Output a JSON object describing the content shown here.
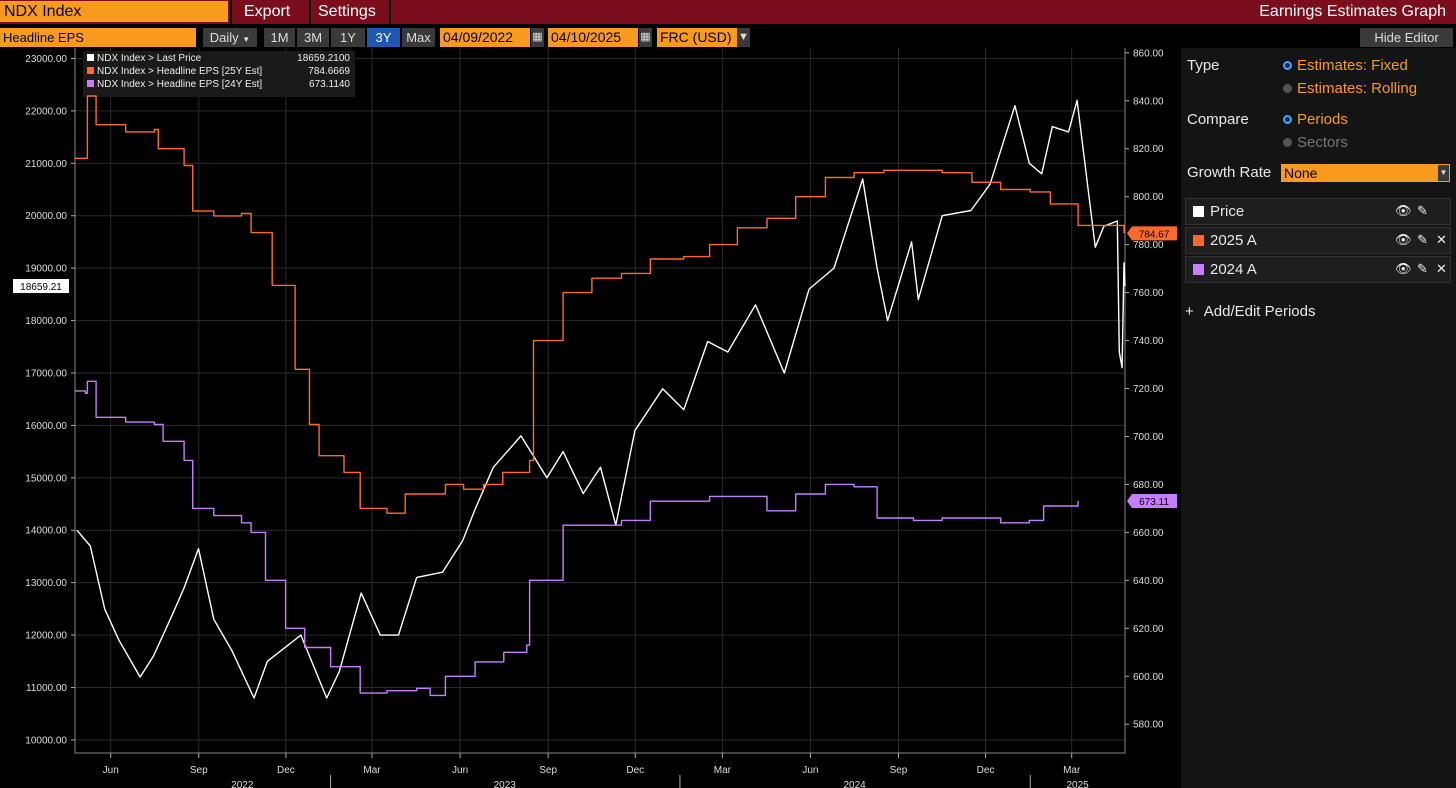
{
  "header": {
    "ticker": "NDX Index",
    "menu": [
      "Export",
      "Settings"
    ],
    "title": "Earnings Estimates Graph"
  },
  "toolbar": {
    "field": "Headline EPS",
    "frequency": "Daily",
    "ranges": [
      "1M",
      "3M",
      "1Y",
      "3Y",
      "Max"
    ],
    "active_range": "3Y",
    "start_date": "04/09/2022",
    "end_date": "04/10/2025",
    "currency": "FRC (USD)",
    "hide_editor": "Hide Editor"
  },
  "panel": {
    "type_label": "Type",
    "type_options": [
      "Estimates: Fixed",
      "Estimates: Rolling"
    ],
    "compare_label": "Compare",
    "compare_options": [
      "Periods",
      "Sectors"
    ],
    "growth_label": "Growth Rate",
    "growth_value": "None",
    "series_rows": [
      {
        "name": "Price",
        "color": "#ffffff"
      },
      {
        "name": "2025 A",
        "color": "#ff6a2b"
      },
      {
        "name": "2024 A",
        "color": "#c77dff"
      }
    ],
    "add_periods": "Add/Edit Periods"
  },
  "chart_data": {
    "type": "line",
    "legend": [
      {
        "label": "NDX Index > Last Price",
        "value": "18659.2100",
        "color": "#ffffff"
      },
      {
        "label": "NDX Index > Headline EPS [25Y Est]",
        "value": "784.6669",
        "color": "#ff6a2b"
      },
      {
        "label": "NDX Index > Headline EPS [24Y Est]",
        "value": "673.1140",
        "color": "#c77dff"
      }
    ],
    "left_axis": {
      "ticks": [
        "23000.00",
        "22000.00",
        "21000.00",
        "20000.00",
        "19000.00",
        "18000.00",
        "17000.00",
        "16000.00",
        "15000.00",
        "14000.00",
        "13000.00",
        "12000.00",
        "11000.00",
        "10000.00"
      ],
      "range": [
        9750,
        23200
      ]
    },
    "right_axis": {
      "ticks": [
        "860.00",
        "840.00",
        "820.00",
        "800.00",
        "780.00",
        "760.00",
        "740.00",
        "720.00",
        "700.00",
        "680.00",
        "660.00",
        "640.00",
        "620.00",
        "600.00",
        "580.00"
      ],
      "range": [
        568,
        862
      ]
    },
    "x_axis": {
      "months": [
        "Jun",
        "Sep",
        "Dec",
        "Mar",
        "Jun",
        "Sep",
        "Dec",
        "Mar",
        "Jun",
        "Sep",
        "Dec",
        "Mar"
      ],
      "years": [
        "2022",
        "2023",
        "2024",
        "2025"
      ],
      "range": [
        "2022-04-09",
        "2025-04-10"
      ]
    },
    "last_labels": {
      "price": "18659.21",
      "eps25": "784.67",
      "eps24": "673.11"
    },
    "series": [
      {
        "name": "NDX Index > Last Price",
        "axis": "left",
        "color": "#ffffff",
        "points": [
          [
            "2022-04-11",
            14000
          ],
          [
            "2022-04-25",
            13700
          ],
          [
            "2022-05-10",
            12500
          ],
          [
            "2022-05-25",
            11900
          ],
          [
            "2022-06-16",
            11200
          ],
          [
            "2022-06-30",
            11600
          ],
          [
            "2022-07-20",
            12400
          ],
          [
            "2022-08-01",
            12900
          ],
          [
            "2022-08-16",
            13650
          ],
          [
            "2022-09-01",
            12300
          ],
          [
            "2022-09-20",
            11700
          ],
          [
            "2022-10-13",
            10800
          ],
          [
            "2022-10-27",
            11500
          ],
          [
            "2022-11-10",
            11700
          ],
          [
            "2022-12-01",
            12000
          ],
          [
            "2022-12-28",
            10800
          ],
          [
            "2023-01-10",
            11300
          ],
          [
            "2023-02-02",
            12800
          ],
          [
            "2023-02-22",
            12000
          ],
          [
            "2023-03-13",
            12000
          ],
          [
            "2023-04-01",
            13100
          ],
          [
            "2023-04-28",
            13200
          ],
          [
            "2023-05-19",
            13800
          ],
          [
            "2023-06-01",
            14400
          ],
          [
            "2023-06-20",
            15200
          ],
          [
            "2023-07-19",
            15800
          ],
          [
            "2023-08-15",
            15000
          ],
          [
            "2023-09-01",
            15500
          ],
          [
            "2023-09-22",
            14700
          ],
          [
            "2023-10-10",
            15200
          ],
          [
            "2023-10-26",
            14100
          ],
          [
            "2023-11-15",
            15900
          ],
          [
            "2023-12-14",
            16700
          ],
          [
            "2024-01-05",
            16300
          ],
          [
            "2024-01-30",
            17600
          ],
          [
            "2024-02-20",
            17400
          ],
          [
            "2024-03-20",
            18300
          ],
          [
            "2024-04-19",
            17000
          ],
          [
            "2024-05-15",
            18600
          ],
          [
            "2024-06-10",
            19000
          ],
          [
            "2024-07-10",
            20700
          ],
          [
            "2024-07-25",
            19000
          ],
          [
            "2024-08-05",
            18000
          ],
          [
            "2024-08-30",
            19500
          ],
          [
            "2024-09-06",
            18400
          ],
          [
            "2024-10-01",
            20000
          ],
          [
            "2024-10-31",
            20100
          ],
          [
            "2024-11-20",
            20600
          ],
          [
            "2024-12-16",
            22100
          ],
          [
            "2024-12-31",
            21000
          ],
          [
            "2025-01-13",
            20800
          ],
          [
            "2025-01-24",
            21700
          ],
          [
            "2025-02-10",
            21600
          ],
          [
            "2025-02-19",
            22200
          ],
          [
            "2025-03-10",
            19400
          ],
          [
            "2025-03-19",
            19800
          ],
          [
            "2025-04-02",
            19900
          ],
          [
            "2025-04-04",
            17400
          ],
          [
            "2025-04-07",
            17100
          ],
          [
            "2025-04-09",
            19100
          ],
          [
            "2025-04-10",
            18659
          ]
        ]
      },
      {
        "name": "NDX Index > Headline EPS [25Y Est]",
        "axis": "right",
        "color": "#ff6a2b",
        "points": [
          [
            "2022-04-09",
            816
          ],
          [
            "2022-04-20",
            816
          ],
          [
            "2022-04-22",
            842
          ],
          [
            "2022-05-01",
            830
          ],
          [
            "2022-06-01",
            827
          ],
          [
            "2022-07-01",
            828
          ],
          [
            "2022-07-05",
            820
          ],
          [
            "2022-08-01",
            813
          ],
          [
            "2022-08-10",
            794
          ],
          [
            "2022-09-01",
            792
          ],
          [
            "2022-09-30",
            793
          ],
          [
            "2022-10-10",
            785
          ],
          [
            "2022-11-01",
            763
          ],
          [
            "2022-11-25",
            728
          ],
          [
            "2022-12-10",
            705
          ],
          [
            "2022-12-20",
            692
          ],
          [
            "2023-01-15",
            685
          ],
          [
            "2023-02-01",
            670
          ],
          [
            "2023-03-01",
            668
          ],
          [
            "2023-03-20",
            676
          ],
          [
            "2023-05-01",
            680
          ],
          [
            "2023-05-20",
            678
          ],
          [
            "2023-06-10",
            680
          ],
          [
            "2023-06-30",
            685
          ],
          [
            "2023-07-28",
            690
          ],
          [
            "2023-08-01",
            740
          ],
          [
            "2023-09-01",
            760
          ],
          [
            "2023-10-01",
            766
          ],
          [
            "2023-11-01",
            768
          ],
          [
            "2023-12-01",
            774
          ],
          [
            "2024-01-05",
            775
          ],
          [
            "2024-02-01",
            780
          ],
          [
            "2024-03-01",
            787
          ],
          [
            "2024-04-01",
            791
          ],
          [
            "2024-05-01",
            800
          ],
          [
            "2024-06-01",
            808
          ],
          [
            "2024-07-01",
            810
          ],
          [
            "2024-08-01",
            811
          ],
          [
            "2024-10-01",
            810
          ],
          [
            "2024-11-01",
            806
          ],
          [
            "2024-12-01",
            803
          ],
          [
            "2025-01-01",
            802
          ],
          [
            "2025-01-22",
            797
          ],
          [
            "2025-02-20",
            788
          ],
          [
            "2025-03-15",
            788
          ],
          [
            "2025-04-09",
            784.67
          ]
        ]
      },
      {
        "name": "NDX Index > Headline EPS [24Y Est]",
        "axis": "right",
        "color": "#c77dff",
        "points": [
          [
            "2022-04-09",
            719
          ],
          [
            "2022-04-20",
            718
          ],
          [
            "2022-04-22",
            723
          ],
          [
            "2022-05-01",
            708
          ],
          [
            "2022-06-01",
            706
          ],
          [
            "2022-07-01",
            705
          ],
          [
            "2022-07-10",
            698
          ],
          [
            "2022-08-01",
            690
          ],
          [
            "2022-08-10",
            670
          ],
          [
            "2022-09-01",
            667
          ],
          [
            "2022-09-30",
            664
          ],
          [
            "2022-10-10",
            660
          ],
          [
            "2022-10-25",
            640
          ],
          [
            "2022-11-15",
            620
          ],
          [
            "2022-12-05",
            612
          ],
          [
            "2023-01-01",
            604
          ],
          [
            "2023-02-01",
            593
          ],
          [
            "2023-03-01",
            594
          ],
          [
            "2023-04-01",
            595
          ],
          [
            "2023-04-15",
            592
          ],
          [
            "2023-05-01",
            600
          ],
          [
            "2023-06-01",
            606
          ],
          [
            "2023-07-01",
            610
          ],
          [
            "2023-07-25",
            613
          ],
          [
            "2023-07-28",
            640
          ],
          [
            "2023-09-01",
            663
          ],
          [
            "2023-10-01",
            663
          ],
          [
            "2023-11-01",
            665
          ],
          [
            "2023-12-01",
            673
          ],
          [
            "2024-01-05",
            673
          ],
          [
            "2024-02-01",
            675
          ],
          [
            "2024-03-01",
            675
          ],
          [
            "2024-04-01",
            669
          ],
          [
            "2024-05-01",
            676
          ],
          [
            "2024-06-01",
            680
          ],
          [
            "2024-07-01",
            679
          ],
          [
            "2024-07-25",
            666
          ],
          [
            "2024-09-01",
            665
          ],
          [
            "2024-10-01",
            666
          ],
          [
            "2024-11-01",
            666
          ],
          [
            "2024-12-01",
            664
          ],
          [
            "2024-12-31",
            665
          ],
          [
            "2025-01-15",
            671
          ],
          [
            "2025-02-20",
            673.11
          ]
        ]
      }
    ]
  }
}
